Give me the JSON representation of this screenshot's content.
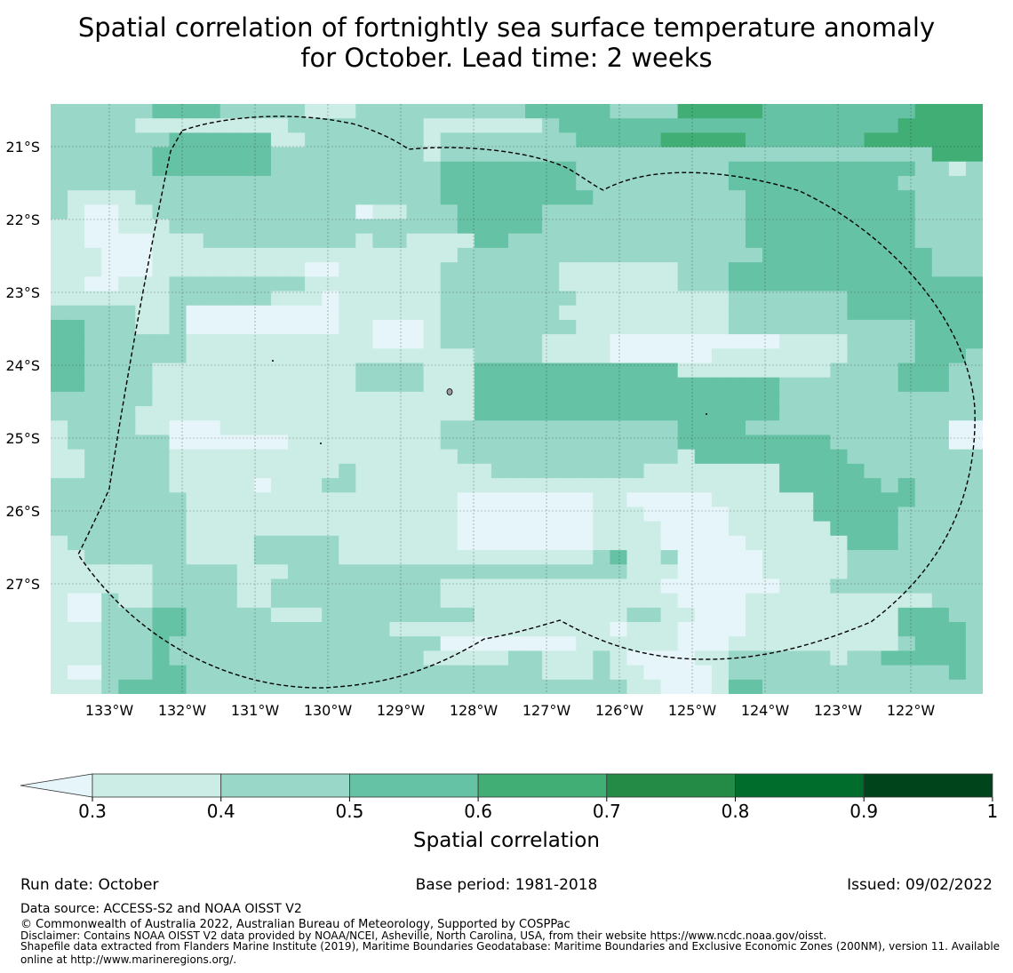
{
  "title_line1": "Spatial correlation of fortnightly sea surface temperature anomaly",
  "title_line2": "for October. Lead time: 2 weeks",
  "map": {
    "lon_labels": [
      "133°W",
      "132°W",
      "131°W",
      "130°W",
      "129°W",
      "128°W",
      "127°W",
      "126°W",
      "125°W",
      "124°W",
      "123°W",
      "122°W"
    ],
    "lat_labels": [
      "21°S",
      "22°S",
      "23°S",
      "24°S",
      "25°S",
      "26°S",
      "27°S"
    ],
    "colors": [
      "#e6f5f9",
      "#ccede5",
      "#99d8c9",
      "#66c2a4",
      "#41ae76",
      "#238b45",
      "#006d2c",
      "#00441b"
    ],
    "rows": [
      "2222223333222221112222222222333332222444443333333334444",
      "2222211111111122222222111111123333333333333333333344444",
      "2222222333333112222222122222222333334444433333334444444",
      "2222223333333222222222122222222222222222222222222222444",
      "2222223333333222222222233333333222222222333333333332212",
      "2222222222222222222222233333333222222222333333333322222",
      "2111122222222222222222233333333322222222233333333332222",
      "2100112222222222220112223333322222222222233333333332222",
      "1100111222222222222222223333322222222222233333333332222",
      "1100001112222222221221111332222222222222233333333332222",
      "1110001111111111111111112222222222222222223333333333222",
      "1110001111111110011111122222221111111222333333333333222",
      "1100111222222221111111122222221111111222333333333333333",
      "1111111222222111011111122222222111111111222222233333333",
      "2222211200000000011111122222221111111111222222233333333",
      "3322211200000000011000122222222111111111222222222223333",
      "3322222211111111111000122222211110000000000111122223333",
      "3322222211111111111111111222211110000001111111122223332",
      "3322221111111111112222111333333333333111111111222233322",
      "3322221111111111112222111333333333333333333222222233322",
      "2222221111111111111111111333333333333333333222222222222",
      "2222211111111111111111111333333333333333333222222222222",
      "1222211000111111111111122222222222222333322222222222200",
      "1222222000000011111111122222222222222333333333222222200",
      "1122222111111111111111112222222222222133333333322222222",
      "1122222111111111121111111122222222211111111333332222222",
      "2222222111110111221111111111111111111111111333333232222",
      "2222222211111111111111110000000011000001111113333332222",
      "2222222211111111111111110000000011100000111113333322222",
      "2222222211111111111111110000000011110000111111333322222",
      "1222222211112222211111110000000011110000011111133322222",
      "1122222211112222211111111111111123112000001111122222222",
      "1111112222211122222222222222222222111000001111122222222",
      "1111112222211222222222211111111111110000000111222222222",
      "1002112222211222222222211111111111111000011111111111222",
      "1002223322222111222222222111111111221100011111111133322",
      "1112223322222222222211111111111110111000011111111133332",
      "1112223222222222222222200000000111111000111111111123332",
      "1112223222222222222222111112211121000011222222122333332",
      "1002223322222222222222222222211121100001222222222222232",
      "1112333322222222222222222222222222110001332222222222222"
    ]
  },
  "colorbar": {
    "tick_labels": [
      "0.3",
      "0.4",
      "0.5",
      "0.6",
      "0.7",
      "0.8",
      "0.9",
      "1"
    ],
    "label": "Spatial correlation"
  },
  "footer": {
    "run_date": "Run date: October",
    "base_period": "Base period: 1981-2018",
    "issued": "Issued: 09/02/2022",
    "data_source": "Data source: ACCESS-S2 and NOAA OISST V2",
    "copyright": "© Commonwealth of Australia 2022, Australian Bureau of Meteorology, Supported by COSPPac",
    "disclaimer": "Disclaimer: Contains NOAA OISST V2 data provided by NOAA/NCEI, Asheville, North Carolina, USA, from their website https://www.ncdc.noaa.gov/oisst.",
    "shapefile_line1": "Shapefile data extracted from Flanders Marine Institute (2019), Maritime Boundaries Geodatabase: Maritime Boundaries and Exclusive Economic Zones (200NM), version 11. Available",
    "shapefile_line2": "online at http://www.marineregions.org/."
  }
}
